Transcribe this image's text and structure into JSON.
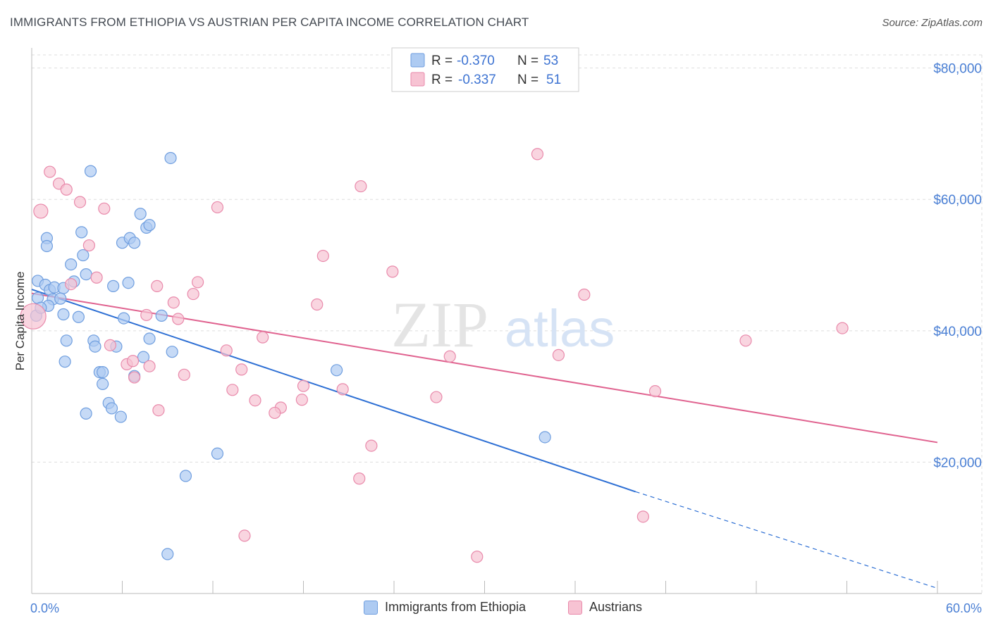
{
  "title": "IMMIGRANTS FROM ETHIOPIA VS AUSTRIAN PER CAPITA INCOME CORRELATION CHART",
  "source": "Source: ZipAtlas.com",
  "watermark": {
    "zip": "ZIP",
    "atlas": "atlas"
  },
  "colors": {
    "blue_fill": "#aecbf2",
    "blue_stroke": "#6f9edf",
    "blue_line": "#2d6fd4",
    "pink_fill": "#f7c3d3",
    "pink_stroke": "#e98aab",
    "pink_line": "#e0628f",
    "grid": "#dddddd",
    "tick_text": "#4a7fd4"
  },
  "chart_data": {
    "type": "scatter",
    "title": "IMMIGRANTS FROM ETHIOPIA VS AUSTRIAN PER CAPITA INCOME CORRELATION CHART",
    "xlabel": "",
    "ylabel": "Per Capita Income",
    "xlim": [
      0,
      60
    ],
    "ylim": [
      0,
      82000
    ],
    "x_tick_labels": [
      "0.0%",
      "60.0%"
    ],
    "y_ticks": [
      20000,
      40000,
      60000,
      80000
    ],
    "y_tick_labels": [
      "$20,000",
      "$40,000",
      "$60,000",
      "$80,000"
    ],
    "grid": true,
    "legend": {
      "position": "top-center",
      "entries": [
        {
          "r_label": "R =",
          "r_value": "-0.370",
          "n_label": "N =",
          "n_value": "53"
        },
        {
          "r_label": "R =",
          "r_value": "-0.337",
          "n_label": "N =",
          "n_value": "51"
        }
      ]
    },
    "series": [
      {
        "name": "Immigrants from Ethiopia",
        "color": "#aecbf2",
        "points": [
          [
            0.4,
            47600
          ],
          [
            0.4,
            45000
          ],
          [
            0.3,
            42300
          ],
          [
            0.9,
            47000
          ],
          [
            1.2,
            46200
          ],
          [
            1.5,
            46600
          ],
          [
            1.4,
            44800
          ],
          [
            1.1,
            43800
          ],
          [
            2.1,
            46500
          ],
          [
            2.8,
            47500
          ],
          [
            2.1,
            42500
          ],
          [
            3.1,
            42100
          ],
          [
            3.6,
            48600
          ],
          [
            3.4,
            51500
          ],
          [
            2.6,
            50100
          ],
          [
            1.0,
            54100
          ],
          [
            1.0,
            52900
          ],
          [
            3.3,
            55000
          ],
          [
            3.9,
            64300
          ],
          [
            2.3,
            38500
          ],
          [
            4.1,
            38500
          ],
          [
            4.2,
            37600
          ],
          [
            5.6,
            37600
          ],
          [
            2.2,
            35300
          ],
          [
            4.5,
            33700
          ],
          [
            4.7,
            33700
          ],
          [
            4.7,
            31900
          ],
          [
            5.1,
            29000
          ],
          [
            5.3,
            28200
          ],
          [
            5.9,
            26900
          ],
          [
            3.6,
            27400
          ],
          [
            6.0,
            53400
          ],
          [
            6.5,
            54100
          ],
          [
            6.8,
            53400
          ],
          [
            7.2,
            57800
          ],
          [
            7.6,
            55700
          ],
          [
            7.8,
            56100
          ],
          [
            9.2,
            66300
          ],
          [
            5.4,
            46800
          ],
          [
            6.4,
            47300
          ],
          [
            6.1,
            41900
          ],
          [
            7.8,
            38800
          ],
          [
            8.6,
            42300
          ],
          [
            9.3,
            36800
          ],
          [
            7.4,
            36000
          ],
          [
            6.8,
            33100
          ],
          [
            20.2,
            34000
          ],
          [
            12.3,
            21300
          ],
          [
            34.0,
            23800
          ],
          [
            10.2,
            17900
          ],
          [
            9.0,
            6000
          ],
          [
            0.6,
            43500
          ],
          [
            1.9,
            44900
          ]
        ]
      },
      {
        "name": "Austrians",
        "color": "#f7c3d3",
        "points": [
          [
            0.1,
            42200
          ],
          [
            0.6,
            58200
          ],
          [
            1.2,
            64200
          ],
          [
            1.8,
            62400
          ],
          [
            2.3,
            61500
          ],
          [
            3.2,
            59600
          ],
          [
            4.8,
            58600
          ],
          [
            12.3,
            58800
          ],
          [
            21.8,
            62000
          ],
          [
            33.5,
            66900
          ],
          [
            3.8,
            53000
          ],
          [
            4.3,
            48100
          ],
          [
            2.6,
            47100
          ],
          [
            8.3,
            46800
          ],
          [
            11.0,
            47400
          ],
          [
            10.7,
            45600
          ],
          [
            9.4,
            44300
          ],
          [
            7.6,
            42400
          ],
          [
            9.7,
            41800
          ],
          [
            18.9,
            44000
          ],
          [
            19.3,
            51400
          ],
          [
            23.9,
            49000
          ],
          [
            36.6,
            45500
          ],
          [
            53.7,
            40400
          ],
          [
            47.3,
            38500
          ],
          [
            15.3,
            39000
          ],
          [
            5.2,
            37800
          ],
          [
            6.3,
            34900
          ],
          [
            7.8,
            34600
          ],
          [
            6.7,
            35400
          ],
          [
            12.9,
            37000
          ],
          [
            13.9,
            34100
          ],
          [
            6.8,
            32900
          ],
          [
            10.1,
            33300
          ],
          [
            13.3,
            31000
          ],
          [
            14.8,
            29400
          ],
          [
            16.5,
            28300
          ],
          [
            16.1,
            27500
          ],
          [
            17.9,
            29500
          ],
          [
            18.0,
            31600
          ],
          [
            20.6,
            31100
          ],
          [
            26.8,
            29900
          ],
          [
            27.7,
            36100
          ],
          [
            34.9,
            36300
          ],
          [
            41.3,
            30800
          ],
          [
            8.4,
            27900
          ],
          [
            22.5,
            22500
          ],
          [
            21.7,
            17500
          ],
          [
            40.5,
            11700
          ],
          [
            14.1,
            8800
          ],
          [
            29.5,
            5600
          ]
        ]
      }
    ],
    "trend_lines": [
      {
        "series": "Immigrants from Ethiopia",
        "x": [
          0,
          40
        ],
        "y": [
          46300,
          15500
        ],
        "dashed_extension_to": [
          60,
          800
        ]
      },
      {
        "series": "Austrians",
        "x": [
          0,
          60
        ],
        "y": [
          45700,
          23000
        ]
      }
    ]
  },
  "bottom_legend": [
    {
      "label": "Immigrants from Ethiopia"
    },
    {
      "label": "Austrians"
    }
  ]
}
